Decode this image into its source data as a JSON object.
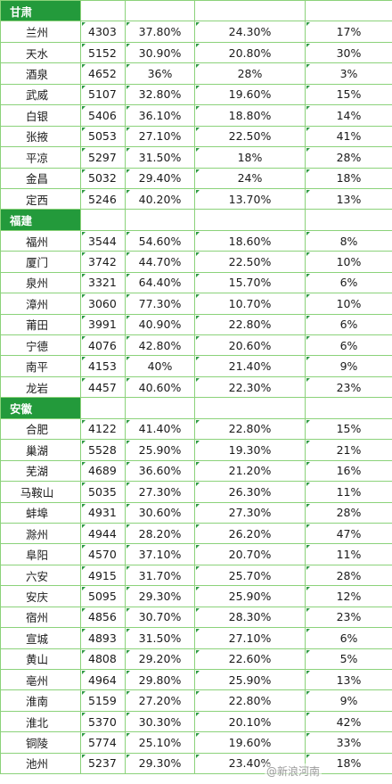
{
  "provinces": [
    {
      "name": "甘肃",
      "rows": [
        [
          "兰州",
          "4303",
          "37.80%",
          "24.30%",
          "17%"
        ],
        [
          "天水",
          "5152",
          "30.90%",
          "20.80%",
          "30%"
        ],
        [
          "酒泉",
          "4652",
          "36%",
          "28%",
          "3%"
        ],
        [
          "武威",
          "5107",
          "32.80%",
          "19.60%",
          "15%"
        ],
        [
          "白银",
          "5406",
          "36.10%",
          "18.80%",
          "14%"
        ],
        [
          "张掖",
          "5053",
          "27.10%",
          "22.50%",
          "41%"
        ],
        [
          "平凉",
          "5297",
          "31.50%",
          "18%",
          "28%"
        ],
        [
          "金昌",
          "5032",
          "29.40%",
          "24%",
          "18%"
        ],
        [
          "定西",
          "5246",
          "40.20%",
          "13.70%",
          "13%"
        ]
      ]
    },
    {
      "name": "福建",
      "rows": [
        [
          "福州",
          "3544",
          "54.60%",
          "18.60%",
          "8%"
        ],
        [
          "厦门",
          "3742",
          "44.70%",
          "22.50%",
          "10%"
        ],
        [
          "泉州",
          "3321",
          "64.40%",
          "15.70%",
          "6%"
        ],
        [
          "漳州",
          "3060",
          "77.30%",
          "10.70%",
          "10%"
        ],
        [
          "莆田",
          "3991",
          "40.90%",
          "22.80%",
          "6%"
        ],
        [
          "宁德",
          "4076",
          "42.80%",
          "20.60%",
          "6%"
        ],
        [
          "南平",
          "4153",
          "40%",
          "21.40%",
          "9%"
        ],
        [
          "龙岩",
          "4457",
          "40.60%",
          "22.30%",
          "23%"
        ]
      ]
    },
    {
      "name": "安徽",
      "rows": [
        [
          "合肥",
          "4122",
          "41.40%",
          "22.80%",
          "15%"
        ],
        [
          "巢湖",
          "5528",
          "25.90%",
          "19.30%",
          "21%"
        ],
        [
          "芜湖",
          "4689",
          "36.60%",
          "21.20%",
          "16%"
        ],
        [
          "马鞍山",
          "5035",
          "27.30%",
          "26.30%",
          "11%"
        ],
        [
          "蚌埠",
          "4931",
          "30.60%",
          "27.30%",
          "28%"
        ],
        [
          "滁州",
          "4944",
          "28.20%",
          "26.20%",
          "47%"
        ],
        [
          "阜阳",
          "4570",
          "37.10%",
          "20.70%",
          "11%"
        ],
        [
          "六安",
          "4915",
          "31.70%",
          "25.70%",
          "28%"
        ],
        [
          "安庆",
          "5095",
          "29.30%",
          "25.90%",
          "12%"
        ],
        [
          "宿州",
          "4856",
          "30.70%",
          "28.30%",
          "23%"
        ],
        [
          "宣城",
          "4893",
          "31.50%",
          "27.10%",
          "6%"
        ],
        [
          "黄山",
          "4808",
          "29.20%",
          "22.60%",
          "5%"
        ],
        [
          "亳州",
          "4964",
          "29.80%",
          "25.90%",
          "13%"
        ],
        [
          "淮南",
          "5159",
          "27.20%",
          "22.80%",
          "9%"
        ],
        [
          "淮北",
          "5370",
          "30.30%",
          "20.10%",
          "42%"
        ],
        [
          "铜陵",
          "5774",
          "25.10%",
          "19.60%",
          "33%"
        ],
        [
          "池州",
          "5237",
          "29.30%",
          "23.40%",
          "18%"
        ]
      ]
    }
  ],
  "watermark": "@新浪河南"
}
